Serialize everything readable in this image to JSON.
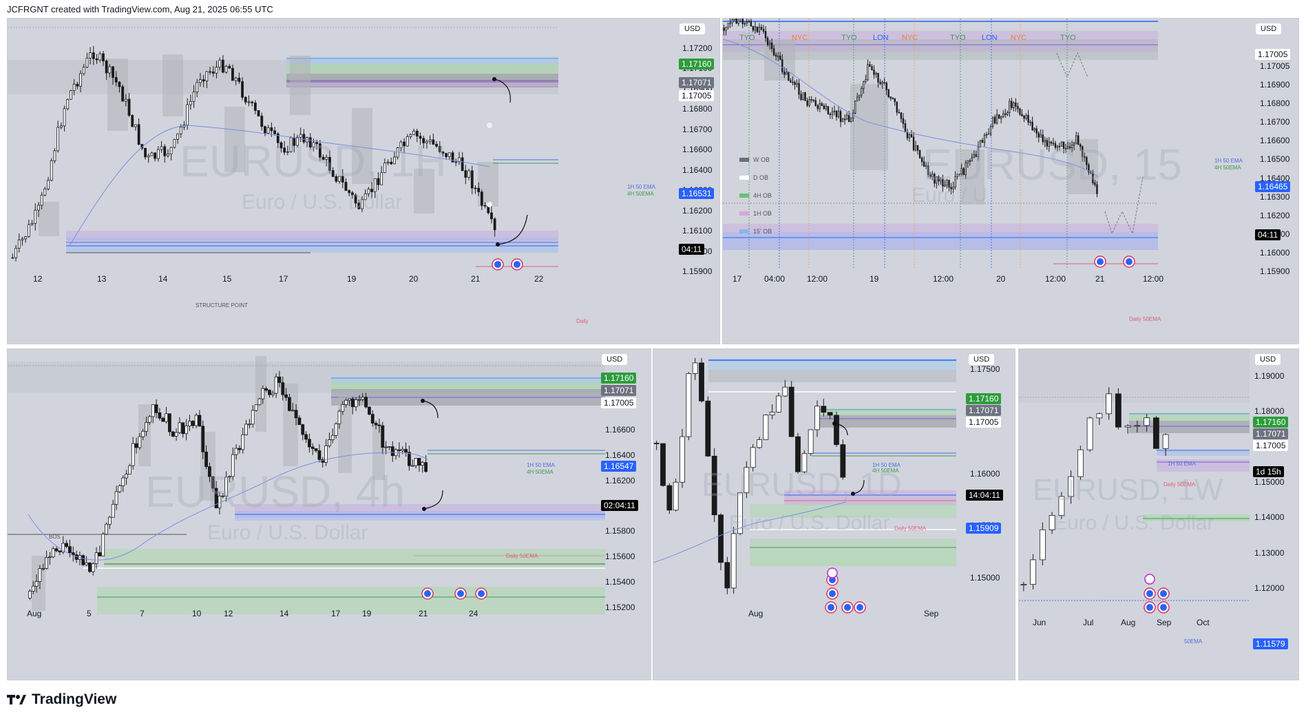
{
  "header": {
    "text": "JCFRGNT created with TradingView.com, Aug 21, 2025 06:55 UTC"
  },
  "footer": {
    "brand": "TradingView",
    "logo_icon": "tradingview-logo-icon"
  },
  "colors": {
    "bg": "#d1d4dc",
    "green_tag": "#2e9c3c",
    "grey_tag": "#6f7380",
    "blue_tag": "#2962ff",
    "black_tag": "#000000"
  },
  "panels": {
    "p1": {
      "currency": "USD",
      "watermark": "EURUSD, 1H",
      "watermark_sub": "Euro / U.S. Dollar",
      "prices": [
        "1.17200",
        "1.17100",
        "1.16900",
        "1.16800",
        "1.16700",
        "1.16600",
        "1.16400",
        "1.16300",
        "1.16200",
        "1.16100",
        "1.16000",
        "1.15900"
      ],
      "tags": {
        "t1": "1.17160",
        "t2": "1.17071",
        "t3": "1.17005",
        "t4": "1.16531",
        "timer": "04:11"
      },
      "dates": [
        "12",
        "13",
        "14",
        "15",
        "17",
        "19",
        "20",
        "21",
        "22"
      ],
      "notes": {
        "ema1h": "1H 50 EMA",
        "ema4h": "4H 50EMA",
        "structure": "STRUCTURE POINT",
        "daily": "Daily"
      }
    },
    "p2": {
      "currency": "USD",
      "watermark": "EURUSD, 15",
      "watermark_sub": "Euro / U",
      "prices": [
        "1.17005",
        "1.16900",
        "1.16800",
        "1.16700",
        "1.16600",
        "1.16500",
        "1.16400",
        "1.16300",
        "1.16200",
        "1.16100",
        "1.16000",
        "1.15900"
      ],
      "tags": {
        "t1": "1.17005",
        "t2": "1.16465",
        "timer": "04:11"
      },
      "dates": [
        "17",
        "04:00",
        "12:00",
        "19",
        "12:00",
        "20",
        "12:00",
        "21",
        "12:00"
      ],
      "sessions": [
        "TYO",
        "NYC",
        "TYO",
        "LON",
        "NYC",
        "TYO",
        "LON",
        "NYC",
        "TYO"
      ],
      "legend": [
        "W OB",
        "D OB",
        "4H OB",
        "1H OB",
        "15' OB"
      ],
      "notes": {
        "ema1h": "1H 50 EMA",
        "ema4h": "4H 50EMA",
        "daily": "Daily 50EMA"
      }
    },
    "p3": {
      "currency": "USD",
      "watermark": "EURUSD, 4h",
      "watermark_sub": "Euro / U.S. Dollar",
      "prices": [
        "1.17200",
        "1.16800",
        "1.16600",
        "1.16400",
        "1.16200",
        "1.16000",
        "1.15800",
        "1.15600",
        "1.15400",
        "1.15200"
      ],
      "tags": {
        "t1": "1.17160",
        "t2": "1.17071",
        "t3": "1.17005",
        "t4": "1.16547",
        "timer": "02:04:11"
      },
      "dates": [
        "Aug",
        "5",
        "7",
        "10",
        "12",
        "14",
        "17",
        "19",
        "21",
        "24"
      ],
      "notes": {
        "ema1h": "1H 50 EMA",
        "ema4h": "4H 50EMA",
        "bos": "BOS",
        "daily": "Daily 50EMA"
      }
    },
    "p4": {
      "currency": "USD",
      "watermark": "EURUSD, 1D",
      "watermark_sub": "Euro / U.S. Dollar",
      "prices": [
        "1.17500",
        "1.16500",
        "1.16000",
        "1.15500",
        "1.15000"
      ],
      "tags": {
        "t1": "1.17160",
        "t2": "1.17071",
        "t3": "1.17005",
        "timer": "14:04:11",
        "t4": "1.15909"
      },
      "dates": [
        "Aug",
        "Sep"
      ],
      "notes": {
        "ema1h": "1H 50 EMA",
        "ema4h": "4H 50EMA",
        "daily": "Daily 50EMA"
      }
    },
    "p5": {
      "currency": "USD",
      "watermark": "EURUSD, 1W",
      "watermark_sub": "Euro / U.S. Dollar",
      "prices": [
        "1.19000",
        "1.18000",
        "1.16000",
        "1.15000",
        "1.14000",
        "1.13000",
        "1.12000"
      ],
      "tags": {
        "t1": "1.17160",
        "t2": "1.17071",
        "t3": "1.17005",
        "timer": "1d 15h",
        "t4": "1.11579"
      },
      "dates": [
        "Jun",
        "Jul",
        "Aug",
        "Sep",
        "Oct"
      ],
      "notes": {
        "ema1h": "1H 50 EMA",
        "daily": "Daily 50EMA",
        "ema": "50EMA"
      }
    }
  }
}
